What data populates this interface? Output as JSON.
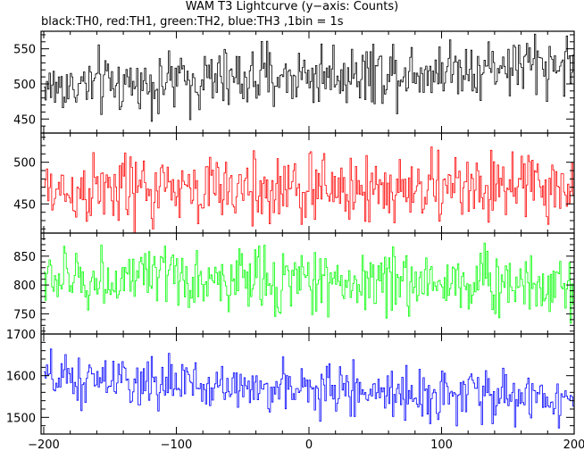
{
  "title": "WAM T3 Lightcurve (y−axis: Counts)",
  "subtitle": "black:TH0, red:TH1, green:TH2, blue:TH3 ,1bin = 1s",
  "chart_data": {
    "type": "line",
    "x_ticks": [
      -200,
      -100,
      0,
      100,
      200
    ],
    "x_tick_labels": [
      "−200",
      "−100",
      "0",
      "100",
      "200"
    ],
    "xlim": [
      -202,
      200
    ],
    "panels": [
      {
        "id": "TH0",
        "color": "#000000",
        "ylim": [
          430,
          575
        ],
        "y_ticks": [
          450,
          500,
          550
        ],
        "mean_start": 495,
        "mean_end": 530,
        "noise": 22,
        "dip": -10
      },
      {
        "id": "TH1",
        "color": "#ff0000",
        "ylim": [
          415,
          535
        ],
        "y_ticks": [
          450,
          500
        ],
        "mean_start": 465,
        "mean_end": 470,
        "noise": 22,
        "dip": -10
      },
      {
        "id": "TH2",
        "color": "#00ff00",
        "ylim": [
          715,
          890
        ],
        "y_ticks": [
          750,
          800,
          850
        ],
        "mean_start": 810,
        "mean_end": 805,
        "noise": 28,
        "dip": -15
      },
      {
        "id": "TH3",
        "color": "#0000ff",
        "ylim": [
          1460,
          1700
        ],
        "y_ticks": [
          1500,
          1600,
          1700
        ],
        "mean_start": 1590,
        "mean_end": 1545,
        "noise": 30,
        "dip": -15
      }
    ],
    "series_note_x_range": [
      -200,
      199
    ]
  }
}
